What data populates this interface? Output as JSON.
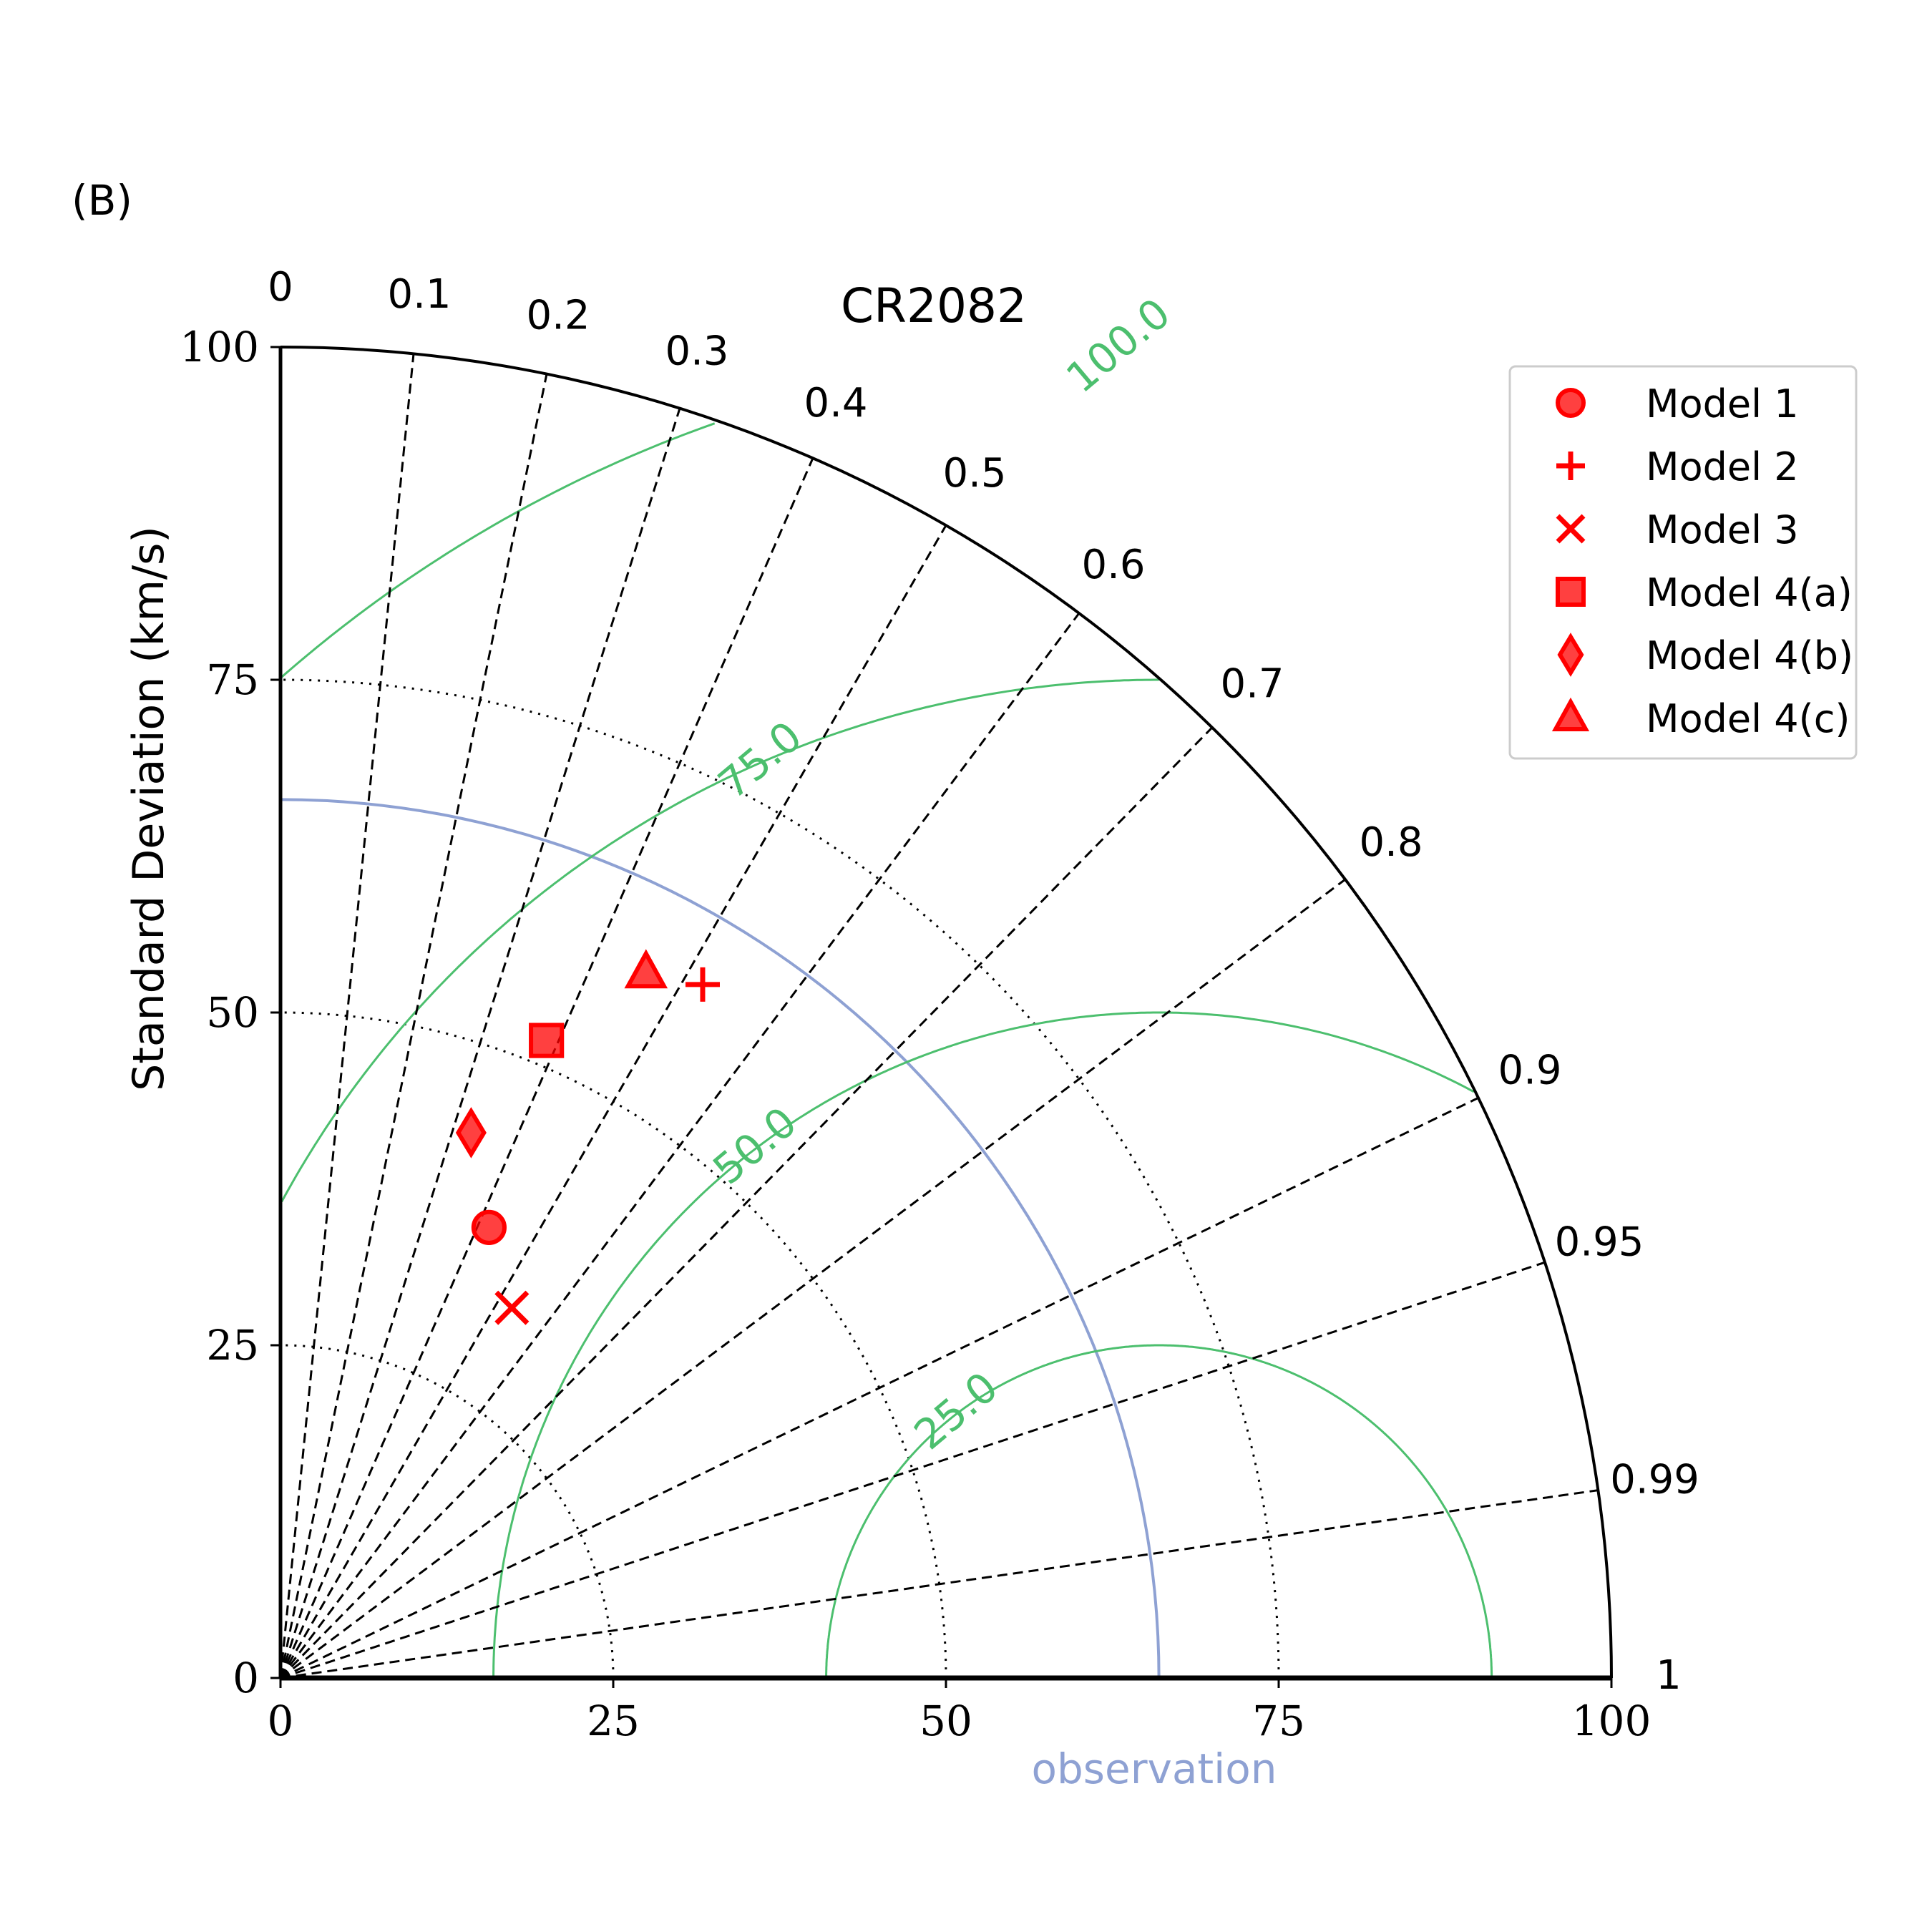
{
  "chart_data": {
    "type": "taylor",
    "panel_label": "(B)",
    "title": "CR2082",
    "ylabel": "Standard Deviation (km/s)",
    "xlabel": "observation",
    "std_range": [
      0,
      100
    ],
    "std_ticks": [
      "0",
      "25",
      "50",
      "75",
      "100"
    ],
    "correlation_ticks": [
      "0",
      "0.1",
      "0.2",
      "0.3",
      "0.4",
      "0.5",
      "0.6",
      "0.7",
      "0.8",
      "0.9",
      "0.95",
      "0.99",
      "1"
    ],
    "correlation_values": [
      0,
      0.1,
      0.2,
      0.3,
      0.4,
      0.5,
      0.6,
      0.7,
      0.8,
      0.9,
      0.95,
      0.99,
      1
    ],
    "std_gridlines": [
      25,
      50,
      75
    ],
    "observation_std": 66,
    "rms_contours": [
      {
        "value": 25,
        "label": "25.0"
      },
      {
        "value": 50,
        "label": "50.0"
      },
      {
        "value": 75,
        "label": "75.0"
      },
      {
        "value": 100,
        "label": "100.0"
      }
    ],
    "series": [
      {
        "name": "Model 1",
        "marker": "circle",
        "std": 37.3,
        "correlation": 0.42
      },
      {
        "name": "Model 2",
        "marker": "plus",
        "std": 61.0,
        "correlation": 0.52
      },
      {
        "name": "Model 3",
        "marker": "x",
        "std": 32.8,
        "correlation": 0.53
      },
      {
        "name": "Model 4(a)",
        "marker": "square",
        "std": 51.9,
        "correlation": 0.385
      },
      {
        "name": "Model 4(b)",
        "marker": "diamond",
        "std": 43.4,
        "correlation": 0.33
      },
      {
        "name": "Model 4(c)",
        "marker": "triangle",
        "std": 59.7,
        "correlation": 0.46
      }
    ],
    "legend_position": "top-right",
    "colors": {
      "model": "#ff0000",
      "rms_contour": "#4cbf6e",
      "observation": "#8ea1d3",
      "axis": "#000000"
    }
  }
}
